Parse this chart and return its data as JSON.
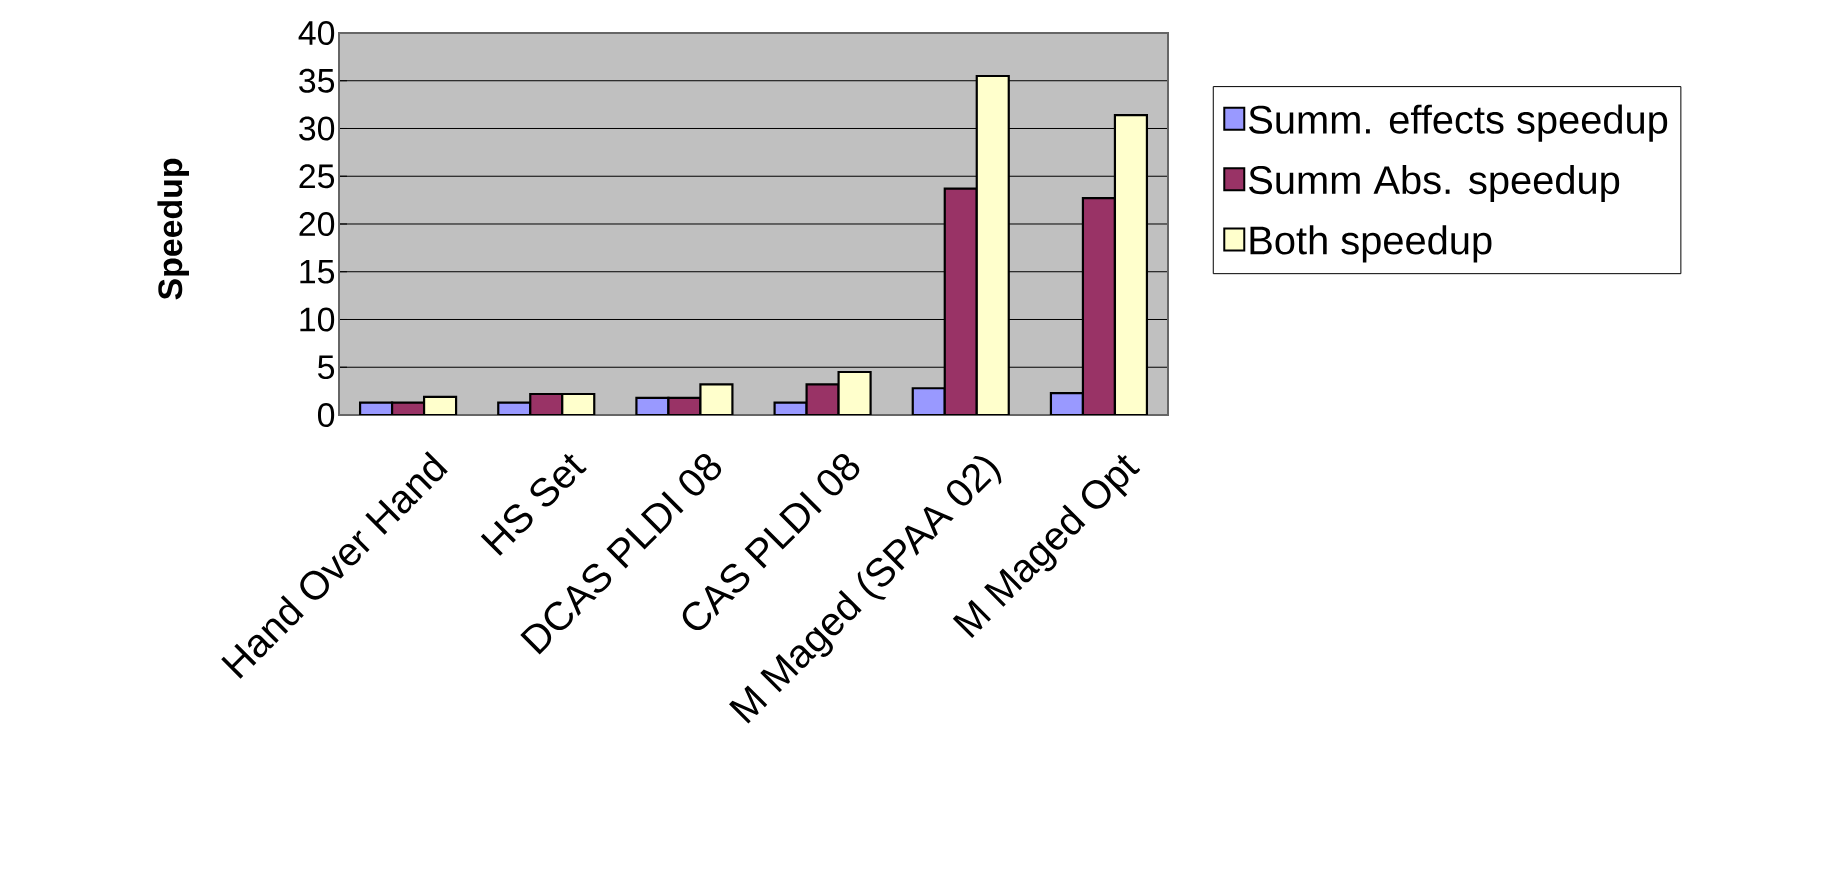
{
  "chart_data": {
    "type": "bar",
    "ylabel": "Speedup",
    "categories": [
      "Hand Over Hand",
      "HS Set",
      "DCAS PLDI 08",
      "CAS PLDI 08",
      "M Maged (SPAA 02)",
      "M Maged Opt"
    ],
    "series": [
      {
        "name": "Summ. effects speedup",
        "color": "#9999ff",
        "values": [
          1.3,
          1.3,
          1.8,
          1.3,
          2.8,
          2.3
        ]
      },
      {
        "name": "Summ Abs. speedup",
        "color": "#993366",
        "values": [
          1.3,
          2.2,
          1.8,
          3.2,
          23.7,
          22.7
        ]
      },
      {
        "name": "Both speedup",
        "color": "#ffffcc",
        "values": [
          1.9,
          2.2,
          3.2,
          4.5,
          35.5,
          31.4
        ]
      }
    ],
    "ylim": [
      0,
      40
    ],
    "yticks": [
      0,
      5,
      10,
      15,
      20,
      25,
      30,
      35,
      40
    ],
    "grid": "y",
    "legend": "right"
  }
}
